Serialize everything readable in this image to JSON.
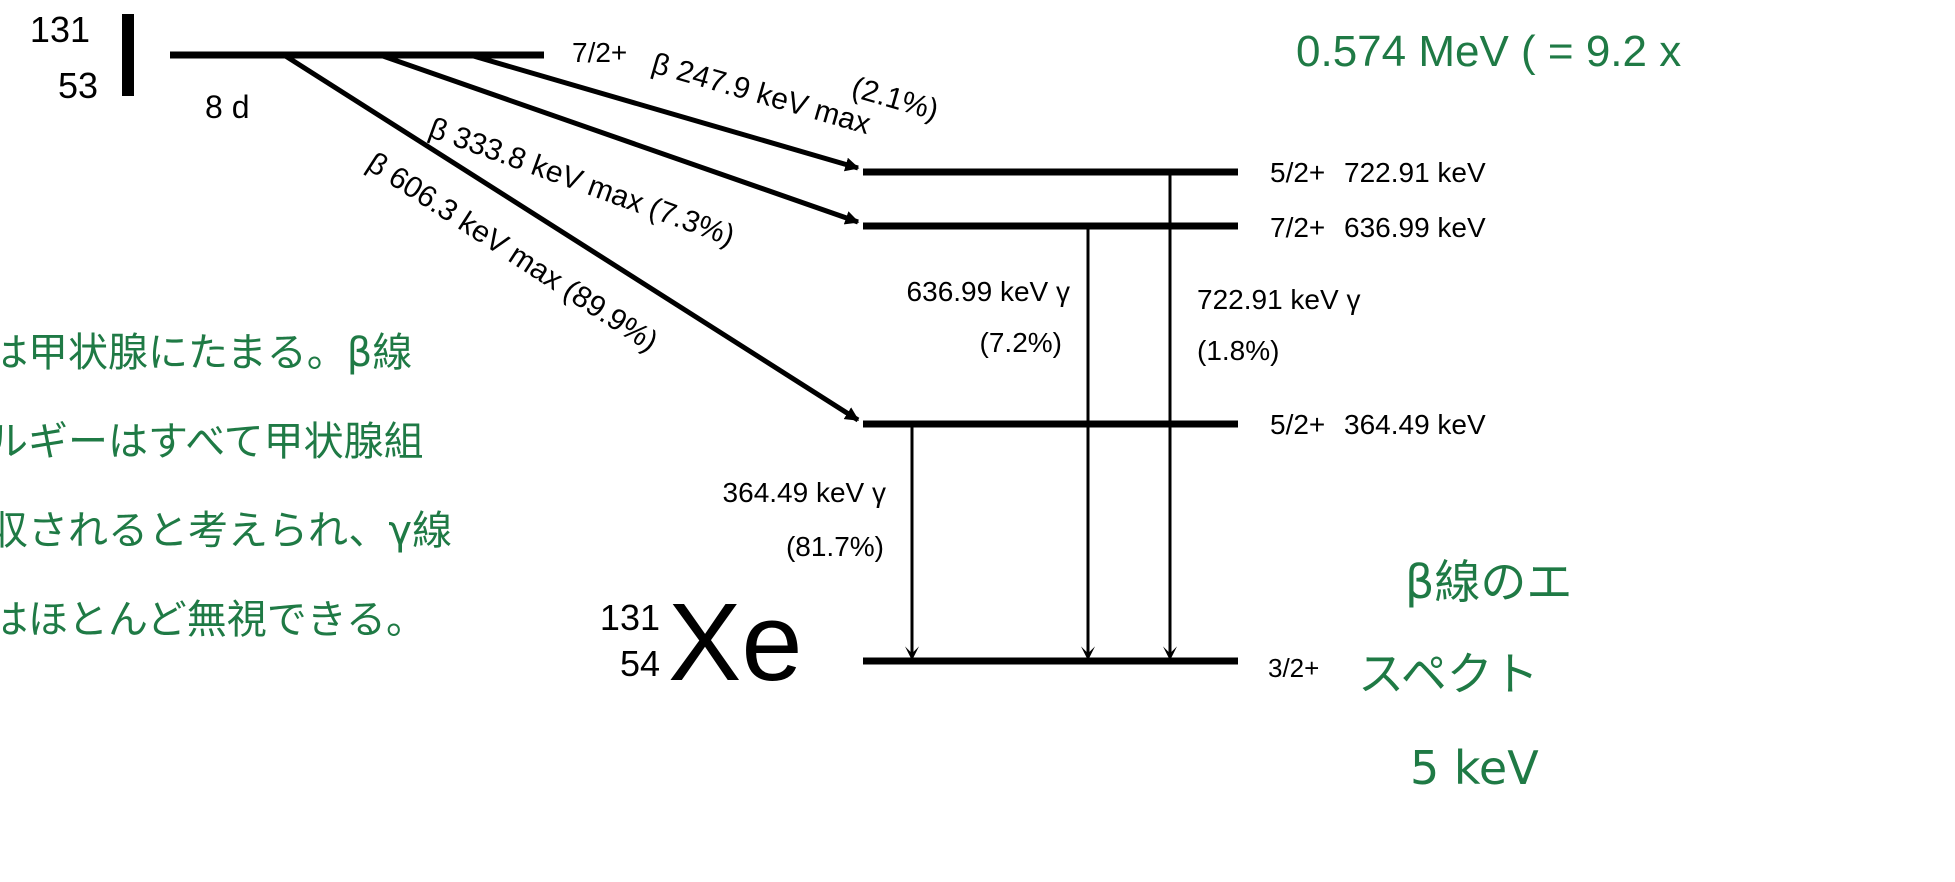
{
  "colors": {
    "ink": "#000000",
    "note_green": "#1f7a45",
    "background": "#ffffff"
  },
  "parent": {
    "mass_number": "131",
    "atomic_number": "53",
    "symbol": "I",
    "half_life": "8 d",
    "spin": "7/2+"
  },
  "daughter": {
    "mass_number": "131",
    "atomic_number": "54",
    "symbol": "Xe",
    "ground_spin": "3/2+"
  },
  "levels": [
    {
      "spin": "5/2+",
      "energy": "722.91 keV"
    },
    {
      "spin": "7/2+",
      "energy": "636.99 keV"
    },
    {
      "spin": "5/2+",
      "energy": "364.49 keV"
    }
  ],
  "beta_branches": [
    {
      "label": "β 247.9 keV max",
      "fraction": "(2.1%)"
    },
    {
      "label": "β 333.8 keV max (7.3%)"
    },
    {
      "label": "β 606.3 keV max (89.9%)"
    }
  ],
  "gamma_transitions": [
    {
      "energy": "636.99 keV γ",
      "fraction": "(7.2%)"
    },
    {
      "energy": "722.91 keV γ",
      "fraction": "(1.8%)"
    },
    {
      "energy": "364.49 keV γ",
      "fraction": "(81.7%)"
    }
  ],
  "notes": {
    "top_right": "0.574 MeV ( = 9.2 x",
    "left_lines": [
      "は甲状腺にたまる。β線",
      "ルギーはすべて甲状腺組",
      "収されると考えられ、γ線",
      "はほとんど無視できる。"
    ],
    "right_lines": [
      "β線のエ",
      "スペクト",
      "5 keV"
    ]
  }
}
